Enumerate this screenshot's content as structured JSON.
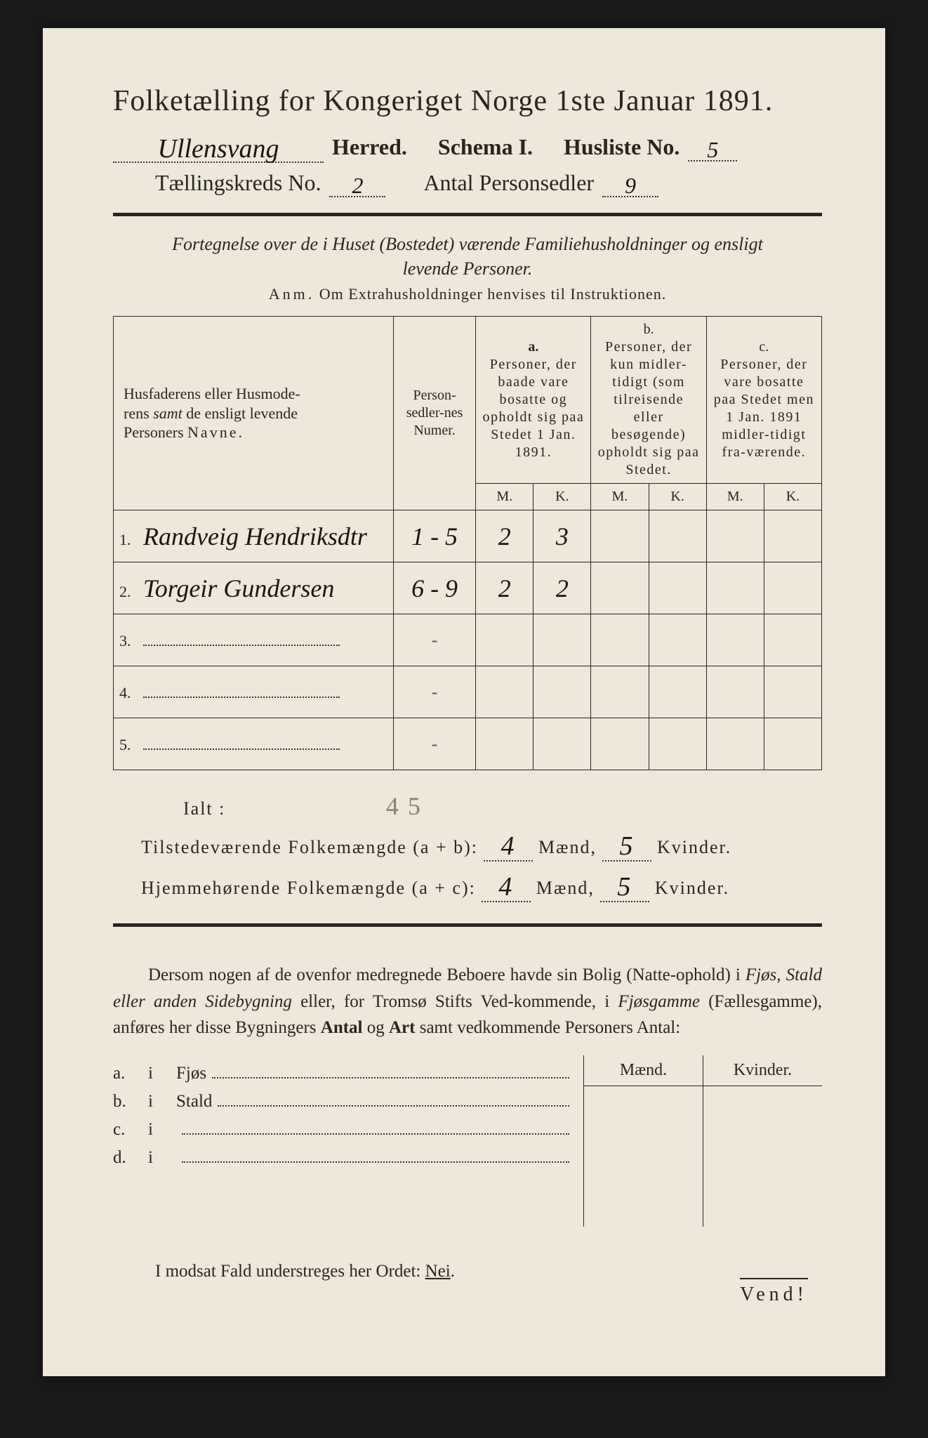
{
  "palette": {
    "paper_bg": "#ede8da",
    "ink": "#2a2520",
    "handwriting": "#1a1510",
    "faint_pencil": "#888070",
    "outer_bg": "#1a1a1a"
  },
  "typography": {
    "title_fontsize_pt": 32,
    "body_fontsize_pt": 20,
    "handwriting_family": "cursive"
  },
  "title": "Folketælling for Kongeriget Norge 1ste Januar 1891.",
  "header": {
    "herred_handwritten": "Ullensvang",
    "herred_label": "Herred.",
    "schema_label": "Schema I.",
    "husliste_label": "Husliste No.",
    "husliste_no": "5",
    "kreds_label": "Tællingskreds No.",
    "kreds_no": "2",
    "antal_label": "Antal Personsedler",
    "antal_val": "9"
  },
  "intro_line1": "Fortegnelse over de i Huset (Bostedet) værende Familiehusholdninger og ensligt",
  "intro_line2": "levende Personer.",
  "anm_label": "Anm.",
  "anm_text": "Om Extrahusholdninger henvises til Instruktionen.",
  "table": {
    "col1_header": "Husfaderens eller Husmoderens samt de ensligt levende Personers Navne.",
    "col2_header": "Person-sedler-nes Numer.",
    "col_a_top": "a.",
    "col_a_header": "Personer, der baade vare bosatte og opholdt sig paa Stedet 1 Jan. 1891.",
    "col_b_top": "b.",
    "col_b_header": "Personer, der kun midler-tidigt (som tilreisende eller besøgende) opholdt sig paa Stedet.",
    "col_c_top": "c.",
    "col_c_header": "Personer, der vare bosatte paa Stedet men 1 Jan. 1891 midler-tidigt fra-værende.",
    "mk_M": "M.",
    "mk_K": "K.",
    "rows": [
      {
        "n": "1.",
        "name": "Randveig Hendriksdtr",
        "numer": "1 - 5",
        "aM": "2",
        "aK": "3",
        "bM": "",
        "bK": "",
        "cM": "",
        "cK": ""
      },
      {
        "n": "2.",
        "name": "Torgeir Gundersen",
        "numer": "6 - 9",
        "aM": "2",
        "aK": "2",
        "bM": "",
        "bK": "",
        "cM": "",
        "cK": ""
      },
      {
        "n": "3.",
        "name": "",
        "numer": "",
        "aM": "",
        "aK": "",
        "bM": "",
        "bK": "",
        "cM": "",
        "cK": ""
      },
      {
        "n": "4.",
        "name": "",
        "numer": "",
        "aM": "",
        "aK": "",
        "bM": "",
        "bK": "",
        "cM": "",
        "cK": ""
      },
      {
        "n": "5.",
        "name": "",
        "numer": "",
        "aM": "",
        "aK": "",
        "bM": "",
        "bK": "",
        "cM": "",
        "cK": ""
      }
    ]
  },
  "ialt_label": "Ialt :",
  "ialt_pencil": "4  5 ",
  "sums": {
    "line1_label": "Tilstedeværende Folkemængde (a + b):",
    "line2_label": "Hjemmehørende Folkemængde (a + c):",
    "maend_label": "Mænd,",
    "kvinder_label": "Kvinder.",
    "line1_m": "4",
    "line1_k": "5",
    "line2_m": "4",
    "line2_k": "5"
  },
  "paragraph": "Dersom nogen af de ovenfor medregnede Beboere havde sin Bolig (Natte-ophold) i Fjøs, Stald eller anden Sidebygning eller, for Tromsø Stifts Ved-kommende, i Fjøsgamme (Fællesgamme), anføres her disse Bygningers Antal og Art samt vedkommende Personers Antal:",
  "sub_headers": {
    "maend": "Mænd.",
    "kvinder": "Kvinder."
  },
  "sub_rows": [
    {
      "lbl": "a.",
      "i": "i",
      "kind": "Fjøs"
    },
    {
      "lbl": "b.",
      "i": "i",
      "kind": "Stald"
    },
    {
      "lbl": "c.",
      "i": "i",
      "kind": ""
    },
    {
      "lbl": "d.",
      "i": "i",
      "kind": ""
    }
  ],
  "nei_line_pre": "I modsat Fald understreges her Ordet: ",
  "nei_word": "Nei",
  "vend": "Vend!"
}
